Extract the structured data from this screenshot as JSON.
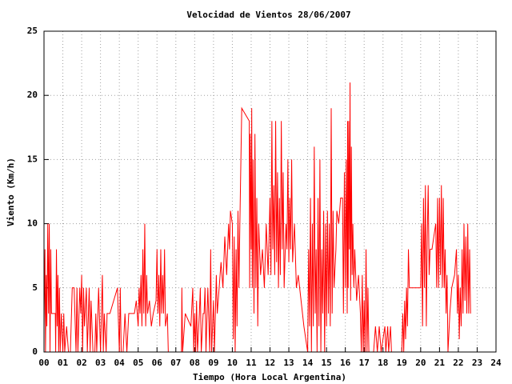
{
  "chart_data": {
    "type": "line",
    "title": "Velocidad de Vientos 28/06/2007",
    "x_label": "Tiempo (Hora Local Argentina)",
    "y_label": "Viento (Km/h)",
    "xlim": [
      0,
      24
    ],
    "ylim": [
      0,
      25
    ],
    "xticks": [
      {
        "value": 0,
        "label": "00"
      },
      {
        "value": 1,
        "label": "01"
      },
      {
        "value": 2,
        "label": "02"
      },
      {
        "value": 3,
        "label": "03"
      },
      {
        "value": 4,
        "label": "04"
      },
      {
        "value": 5,
        "label": "05"
      },
      {
        "value": 6,
        "label": "06"
      },
      {
        "value": 7,
        "label": "07"
      },
      {
        "value": 8,
        "label": "08"
      },
      {
        "value": 9,
        "label": "09"
      },
      10,
      11,
      12,
      13,
      14,
      15,
      16,
      17,
      18,
      19,
      20,
      21,
      22,
      23,
      24
    ],
    "yticks": [
      0,
      5,
      10,
      15,
      20,
      25
    ],
    "grid": true,
    "series": [
      {
        "color": "#ff0000",
        "x": [
          0,
          0.05,
          0.08,
          0.12,
          0.15,
          0.2,
          0.24,
          0.28,
          0.32,
          0.36,
          0.4,
          0.45,
          0.5,
          0.55,
          0.6,
          0.62,
          0.66,
          0.7,
          0.74,
          0.78,
          0.82,
          0.86,
          0.92,
          1.0,
          1.05,
          1.1,
          1.2,
          1.3,
          1.4,
          1.5,
          1.6,
          1.7,
          1.75,
          1.8,
          1.9,
          1.95,
          2.0,
          2.05,
          2.1,
          2.15,
          2.25,
          2.3,
          2.4,
          2.45,
          2.5,
          2.6,
          2.7,
          2.75,
          2.8,
          2.9,
          3.0,
          3.1,
          3.15,
          3.2,
          3.3,
          3.35,
          3.5,
          3.7,
          3.9,
          4.0,
          4.05,
          4.1,
          4.2,
          4.3,
          4.4,
          4.5,
          4.8,
          4.9,
          5.0,
          5.05,
          5.1,
          5.15,
          5.2,
          5.25,
          5.3,
          5.35,
          5.4,
          5.45,
          5.5,
          5.6,
          5.7,
          5.8,
          5.95,
          6.0,
          6.05,
          6.1,
          6.15,
          6.2,
          6.25,
          6.3,
          6.35,
          6.4,
          6.45,
          6.55,
          6.6,
          7.0,
          7.3,
          7.32,
          7.36,
          7.5,
          7.8,
          7.9,
          7.95,
          8.0,
          8.05,
          8.1,
          8.15,
          8.25,
          8.3,
          8.35,
          8.45,
          8.5,
          8.55,
          8.6,
          8.7,
          8.8,
          8.85,
          8.9,
          9.0,
          9.05,
          9.15,
          9.2,
          9.3,
          9.4,
          9.5,
          9.6,
          9.7,
          9.8,
          9.85,
          9.9,
          10.0,
          10.05,
          10.1,
          10.15,
          10.2,
          10.25,
          10.3,
          10.35,
          10.4,
          10.5,
          10.9,
          10.92,
          10.95,
          11.0,
          11.03,
          11.06,
          11.1,
          11.15,
          11.2,
          11.25,
          11.3,
          11.35,
          11.4,
          11.5,
          11.6,
          11.7,
          11.8,
          11.9,
          12.0,
          12.05,
          12.1,
          12.15,
          12.2,
          12.25,
          12.3,
          12.35,
          12.4,
          12.45,
          12.5,
          12.55,
          12.6,
          12.65,
          12.7,
          12.75,
          12.85,
          12.9,
          12.95,
          13.0,
          13.05,
          13.1,
          13.15,
          13.2,
          13.3,
          13.4,
          13.5,
          13.8,
          14.0,
          14.05,
          14.1,
          14.15,
          14.2,
          14.25,
          14.3,
          14.35,
          14.4,
          14.45,
          14.5,
          14.55,
          14.6,
          14.65,
          14.7,
          14.75,
          14.8,
          14.85,
          14.9,
          14.95,
          15.0,
          15.05,
          15.1,
          15.15,
          15.2,
          15.25,
          15.3,
          15.35,
          15.4,
          15.5,
          15.55,
          15.65,
          15.75,
          15.85,
          15.9,
          15.95,
          16.0,
          16.05,
          16.1,
          16.12,
          16.15,
          16.18,
          16.22,
          16.25,
          16.28,
          16.32,
          16.36,
          16.4,
          16.45,
          16.5,
          16.6,
          16.7,
          16.8,
          16.85,
          16.9,
          16.95,
          17.0,
          17.05,
          17.1,
          17.15,
          17.2,
          17.25,
          17.5,
          17.6,
          17.7,
          17.8,
          17.9,
          18.1,
          18.15,
          18.25,
          18.3,
          18.4,
          18.45,
          18.6,
          19.0,
          19.05,
          19.1,
          19.15,
          19.2,
          19.25,
          19.3,
          19.35,
          19.4,
          19.6,
          19.8,
          20.0,
          20.05,
          20.1,
          20.15,
          20.2,
          20.25,
          20.3,
          20.35,
          20.4,
          20.45,
          20.5,
          20.6,
          20.8,
          20.85,
          20.9,
          20.95,
          21.0,
          21.05,
          21.1,
          21.15,
          21.2,
          21.25,
          21.3,
          21.35,
          21.4,
          21.45,
          21.55,
          21.65,
          21.8,
          21.9,
          21.95,
          22.0,
          22.05,
          22.1,
          22.15,
          22.2,
          22.25,
          22.3,
          22.35,
          22.4,
          22.45,
          22.5,
          22.55,
          22.6,
          22.65
        ],
        "values": [
          2,
          8,
          0,
          6,
          2,
          10,
          3,
          10,
          0,
          8,
          3,
          3,
          3,
          3,
          3,
          0,
          8,
          2,
          6,
          0,
          5,
          0,
          3,
          0,
          3,
          0,
          2,
          0,
          0,
          5,
          5,
          0,
          5,
          0,
          5,
          3,
          6,
          0,
          5,
          2,
          5,
          0,
          5,
          0,
          4,
          0,
          0,
          3,
          0,
          5,
          0,
          6,
          0,
          3,
          0,
          3,
          3,
          4,
          5,
          0,
          5,
          0,
          0,
          3,
          0,
          3,
          3,
          4,
          2,
          5,
          3,
          6,
          2,
          8,
          3,
          10,
          2,
          6,
          3,
          4,
          2,
          3,
          4,
          8,
          3,
          6,
          2,
          8,
          3,
          6,
          3,
          8,
          2,
          3,
          0,
          0,
          0,
          5,
          0,
          3,
          2,
          5,
          0,
          3,
          0,
          4,
          0,
          3,
          5,
          0,
          3,
          3,
          5,
          0,
          5,
          0,
          8,
          0,
          4,
          0,
          6,
          3,
          5,
          7,
          5,
          9,
          6,
          10,
          8,
          11,
          10,
          1,
          9,
          0,
          8,
          2,
          11,
          5,
          10,
          19,
          18,
          5,
          17,
          8,
          19,
          5,
          15,
          3,
          17,
          5,
          12,
          2,
          10,
          6,
          8,
          5,
          10,
          6,
          12,
          6,
          18,
          8,
          13,
          6,
          18,
          7,
          14,
          5,
          12,
          6,
          18,
          8,
          14,
          5,
          10,
          8,
          15,
          7,
          12,
          8,
          15,
          7,
          10,
          5,
          6,
          2,
          0,
          8,
          2,
          12,
          0,
          10,
          2,
          16,
          3,
          8,
          0,
          12,
          2,
          15,
          0,
          8,
          3,
          11,
          0,
          10,
          2,
          11,
          3,
          10,
          2,
          19,
          3,
          11,
          5,
          8,
          11,
          10,
          12,
          12,
          3,
          14,
          5,
          15,
          3,
          18,
          5,
          18,
          8,
          21,
          4,
          16,
          6,
          10,
          5,
          8,
          4,
          6,
          3,
          0,
          6,
          0,
          4,
          0,
          8,
          0,
          5,
          0,
          0,
          2,
          0,
          2,
          0,
          2,
          0,
          2,
          0,
          2,
          0,
          0,
          0,
          3,
          0,
          4,
          1,
          5,
          2,
          8,
          5,
          5,
          5,
          5,
          10,
          2,
          12,
          5,
          13,
          2,
          9,
          13,
          6,
          8,
          8,
          10,
          5,
          12,
          5,
          12,
          6,
          13,
          5,
          12,
          5,
          8,
          3,
          6,
          0,
          3,
          5,
          6,
          8,
          3,
          6,
          1,
          5,
          2,
          8,
          3,
          10,
          4,
          9,
          3,
          10,
          3,
          8,
          3
        ]
      }
    ]
  }
}
